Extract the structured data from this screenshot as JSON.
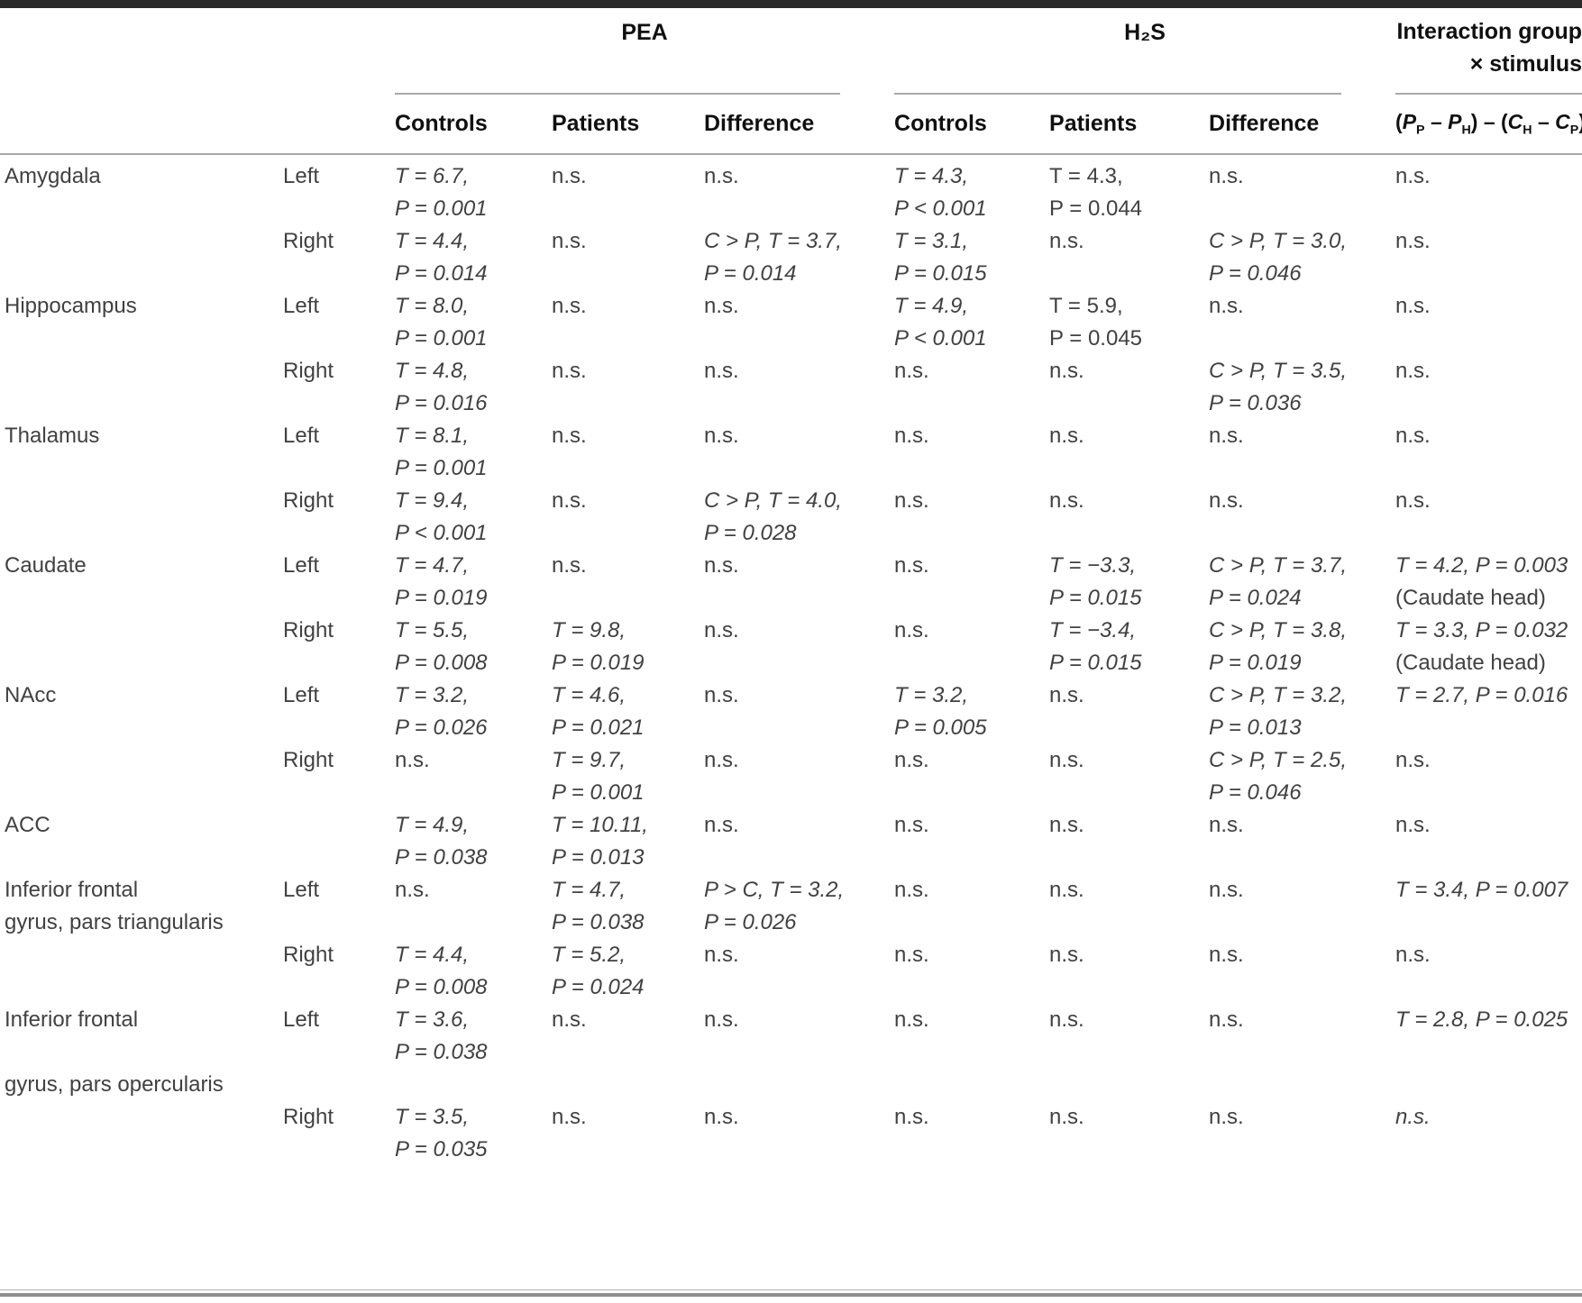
{
  "header": {
    "group_pea": "PEA",
    "group_h2s": "H₂S",
    "group_interaction_line1": "Interaction group",
    "group_interaction_line2": "× stimulus",
    "cols": [
      "Controls",
      "Patients",
      "Difference",
      "Controls",
      "Patients",
      "Difference"
    ],
    "formula": [
      {
        "t": "("
      },
      {
        "t": "P",
        "i": true
      },
      {
        "t": "P",
        "sub": true
      },
      {
        "t": " – "
      },
      {
        "t": "P",
        "i": true
      },
      {
        "t": "H",
        "sub": true
      },
      {
        "t": ") – ("
      },
      {
        "t": "C",
        "i": true
      },
      {
        "t": "H",
        "sub": true
      },
      {
        "t": " – "
      },
      {
        "t": "C",
        "i": true
      },
      {
        "t": "P",
        "sub": true
      },
      {
        "t": ")"
      }
    ]
  },
  "table": {
    "rows": [
      {
        "region": [
          "Amygdala"
        ],
        "side": "Left",
        "cells": [
          [
            {
              "t": "T = 6.7,",
              "i": true
            },
            {
              "t": "P = 0.001",
              "i": true
            }
          ],
          [
            {
              "t": "n.s."
            }
          ],
          [
            {
              "t": "n.s."
            }
          ],
          [
            {
              "t": "T = 4.3,",
              "i": true
            },
            {
              "t": "P < 0.001",
              "i": true
            }
          ],
          [
            {
              "t": "T = 4.3,"
            },
            {
              "t": "P = 0.044"
            }
          ],
          [
            {
              "t": "n.s."
            }
          ],
          [
            {
              "t": "n.s."
            }
          ]
        ]
      },
      {
        "region": [],
        "side": "Right",
        "cells": [
          [
            {
              "t": "T = 4.4,",
              "i": true
            },
            {
              "t": "P = 0.014",
              "i": true
            }
          ],
          [
            {
              "t": "n.s."
            }
          ],
          [
            {
              "t": "C > P, T = 3.7,",
              "i": true
            },
            {
              "t": "P = 0.014",
              "i": true
            }
          ],
          [
            {
              "t": "T = 3.1,",
              "i": true
            },
            {
              "t": "P = 0.015",
              "i": true
            }
          ],
          [
            {
              "t": "n.s."
            }
          ],
          [
            {
              "t": "C > P, T = 3.0,",
              "i": true
            },
            {
              "t": "P = 0.046",
              "i": true
            }
          ],
          [
            {
              "t": "n.s."
            }
          ]
        ]
      },
      {
        "region": [
          "Hippocampus"
        ],
        "side": "Left",
        "cells": [
          [
            {
              "t": "T = 8.0,",
              "i": true
            },
            {
              "t": "P = 0.001",
              "i": true
            }
          ],
          [
            {
              "t": "n.s."
            }
          ],
          [
            {
              "t": "n.s."
            }
          ],
          [
            {
              "t": "T = 4.9,",
              "i": true
            },
            {
              "t": "P < 0.001",
              "i": true
            }
          ],
          [
            {
              "t": "T = 5.9,"
            },
            {
              "t": "P = 0.045"
            }
          ],
          [
            {
              "t": "n.s."
            }
          ],
          [
            {
              "t": "n.s."
            }
          ]
        ]
      },
      {
        "region": [],
        "side": "Right",
        "cells": [
          [
            {
              "t": "T = 4.8,",
              "i": true
            },
            {
              "t": "P = 0.016",
              "i": true
            }
          ],
          [
            {
              "t": "n.s."
            }
          ],
          [
            {
              "t": "n.s."
            }
          ],
          [
            {
              "t": "n.s."
            }
          ],
          [
            {
              "t": "n.s."
            }
          ],
          [
            {
              "t": "C > P, T = 3.5,",
              "i": true
            },
            {
              "t": "P = 0.036",
              "i": true
            }
          ],
          [
            {
              "t": "n.s."
            }
          ]
        ]
      },
      {
        "region": [
          "Thalamus"
        ],
        "side": "Left",
        "cells": [
          [
            {
              "t": "T = 8.1,",
              "i": true
            },
            {
              "t": "P = 0.001",
              "i": true
            }
          ],
          [
            {
              "t": "n.s."
            }
          ],
          [
            {
              "t": "n.s."
            }
          ],
          [
            {
              "t": "n.s."
            }
          ],
          [
            {
              "t": "n.s."
            }
          ],
          [
            {
              "t": "n.s."
            }
          ],
          [
            {
              "t": "n.s."
            }
          ]
        ]
      },
      {
        "region": [],
        "side": "Right",
        "cells": [
          [
            {
              "t": "T = 9.4,",
              "i": true
            },
            {
              "t": "P < 0.001",
              "i": true
            }
          ],
          [
            {
              "t": "n.s."
            }
          ],
          [
            {
              "t": "C > P, T = 4.0,",
              "i": true
            },
            {
              "t": "P = 0.028",
              "i": true
            }
          ],
          [
            {
              "t": "n.s."
            }
          ],
          [
            {
              "t": "n.s."
            }
          ],
          [
            {
              "t": "n.s."
            }
          ],
          [
            {
              "t": "n.s."
            }
          ]
        ]
      },
      {
        "region": [
          "Caudate"
        ],
        "side": "Left",
        "cells": [
          [
            {
              "t": "T = 4.7,",
              "i": true
            },
            {
              "t": "P = 0.019",
              "i": true
            }
          ],
          [
            {
              "t": "n.s."
            }
          ],
          [
            {
              "t": "n.s."
            }
          ],
          [
            {
              "t": "n.s."
            }
          ],
          [
            {
              "t": "T = −3.3,",
              "i": true
            },
            {
              "t": "P = 0.015",
              "i": true
            }
          ],
          [
            {
              "t": "C > P, T = 3.7,",
              "i": true
            },
            {
              "t": "P = 0.024",
              "i": true
            }
          ],
          [
            {
              "t": "T = 4.2, P = 0.003",
              "i": true
            },
            {
              "t": "(Caudate head)"
            }
          ]
        ]
      },
      {
        "region": [],
        "side": "Right",
        "cells": [
          [
            {
              "t": "T = 5.5,",
              "i": true
            },
            {
              "t": "P = 0.008",
              "i": true
            }
          ],
          [
            {
              "t": "T = 9.8,",
              "i": true
            },
            {
              "t": "P = 0.019",
              "i": true
            }
          ],
          [
            {
              "t": "n.s."
            }
          ],
          [
            {
              "t": "n.s."
            }
          ],
          [
            {
              "t": "T = −3.4,",
              "i": true
            },
            {
              "t": "P = 0.015",
              "i": true
            }
          ],
          [
            {
              "t": "C > P, T = 3.8,",
              "i": true
            },
            {
              "t": "P = 0.019",
              "i": true
            }
          ],
          [
            {
              "t": "T = 3.3, P = 0.032",
              "i": true
            },
            {
              "t": "(Caudate head)"
            }
          ]
        ]
      },
      {
        "region": [
          "NAcc"
        ],
        "side": "Left",
        "cells": [
          [
            {
              "t": "T = 3.2,",
              "i": true
            },
            {
              "t": "P = 0.026",
              "i": true
            }
          ],
          [
            {
              "t": "T = 4.6,",
              "i": true
            },
            {
              "t": "P = 0.021",
              "i": true
            }
          ],
          [
            {
              "t": "n.s."
            }
          ],
          [
            {
              "t": "T = 3.2,",
              "i": true
            },
            {
              "t": "P = 0.005",
              "i": true
            }
          ],
          [
            {
              "t": "n.s."
            }
          ],
          [
            {
              "t": "C > P, T = 3.2,",
              "i": true
            },
            {
              "t": "P = 0.013",
              "i": true
            }
          ],
          [
            {
              "t": "T = 2.7, P = 0.016",
              "i": true
            }
          ]
        ]
      },
      {
        "region": [],
        "side": "Right",
        "cells": [
          [
            {
              "t": "n.s."
            }
          ],
          [
            {
              "t": "T = 9.7,",
              "i": true
            },
            {
              "t": "P = 0.001",
              "i": true
            }
          ],
          [
            {
              "t": "n.s."
            }
          ],
          [
            {
              "t": "n.s."
            }
          ],
          [
            {
              "t": "n.s."
            }
          ],
          [
            {
              "t": "C > P, T = 2.5,",
              "i": true
            },
            {
              "t": "P = 0.046",
              "i": true
            }
          ],
          [
            {
              "t": "n.s."
            }
          ]
        ]
      },
      {
        "region": [
          "ACC"
        ],
        "side": "",
        "cells": [
          [
            {
              "t": "T = 4.9,",
              "i": true
            },
            {
              "t": "P = 0.038",
              "i": true
            }
          ],
          [
            {
              "t": "T = 10.11,",
              "i": true
            },
            {
              "t": "P = 0.013",
              "i": true
            }
          ],
          [
            {
              "t": "n.s."
            }
          ],
          [
            {
              "t": "n.s."
            }
          ],
          [
            {
              "t": "n.s."
            }
          ],
          [
            {
              "t": "n.s."
            }
          ],
          [
            {
              "t": "n.s."
            }
          ]
        ]
      },
      {
        "region": [
          "Inferior frontal",
          "gyrus, pars triangularis"
        ],
        "side": "Left",
        "cells": [
          [
            {
              "t": "n.s."
            }
          ],
          [
            {
              "t": "T = 4.7,",
              "i": true
            },
            {
              "t": "P = 0.038",
              "i": true
            }
          ],
          [
            {
              "t": "P > C, T = 3.2,",
              "i": true
            },
            {
              "t": "P = 0.026",
              "i": true
            }
          ],
          [
            {
              "t": "n.s."
            }
          ],
          [
            {
              "t": "n.s."
            }
          ],
          [
            {
              "t": "n.s."
            }
          ],
          [
            {
              "t": "T = 3.4, P = 0.007",
              "i": true
            }
          ]
        ]
      },
      {
        "region": [],
        "side": "Right",
        "cells": [
          [
            {
              "t": "T = 4.4,",
              "i": true
            },
            {
              "t": "P = 0.008",
              "i": true
            }
          ],
          [
            {
              "t": "T = 5.2,",
              "i": true
            },
            {
              "t": "P = 0.024",
              "i": true
            }
          ],
          [
            {
              "t": "n.s."
            }
          ],
          [
            {
              "t": "n.s."
            }
          ],
          [
            {
              "t": "n.s."
            }
          ],
          [
            {
              "t": "n.s."
            }
          ],
          [
            {
              "t": "n.s."
            }
          ]
        ]
      },
      {
        "region": [
          "Inferior frontal",
          "",
          "gyrus, pars opercularis"
        ],
        "side": "Left",
        "cells": [
          [
            {
              "t": "T = 3.6,",
              "i": true
            },
            {
              "t": "P = 0.038",
              "i": true
            }
          ],
          [
            {
              "t": "n.s."
            }
          ],
          [
            {
              "t": "n.s."
            }
          ],
          [
            {
              "t": "n.s."
            }
          ],
          [
            {
              "t": "n.s."
            }
          ],
          [
            {
              "t": "n.s."
            }
          ],
          [
            {
              "t": "T = 2.8, P = 0.025",
              "i": true
            }
          ]
        ]
      },
      {
        "region": [],
        "side": "Right",
        "cells": [
          [
            {
              "t": "T = 3.5,",
              "i": true
            },
            {
              "t": "P = 0.035",
              "i": true
            }
          ],
          [
            {
              "t": "n.s."
            }
          ],
          [
            {
              "t": "n.s."
            }
          ],
          [
            {
              "t": "n.s."
            }
          ],
          [
            {
              "t": "n.s."
            }
          ],
          [
            {
              "t": "n.s."
            }
          ],
          [
            {
              "t": "n.s.",
              "i": true
            }
          ]
        ]
      }
    ]
  }
}
